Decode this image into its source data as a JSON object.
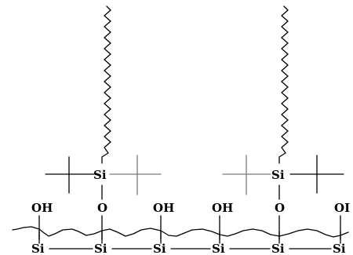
{
  "labels": {
    "silicon": "Si",
    "oxygen": "O",
    "hydroxyl": "OH",
    "hydroxyl_cut": "OI"
  }
}
